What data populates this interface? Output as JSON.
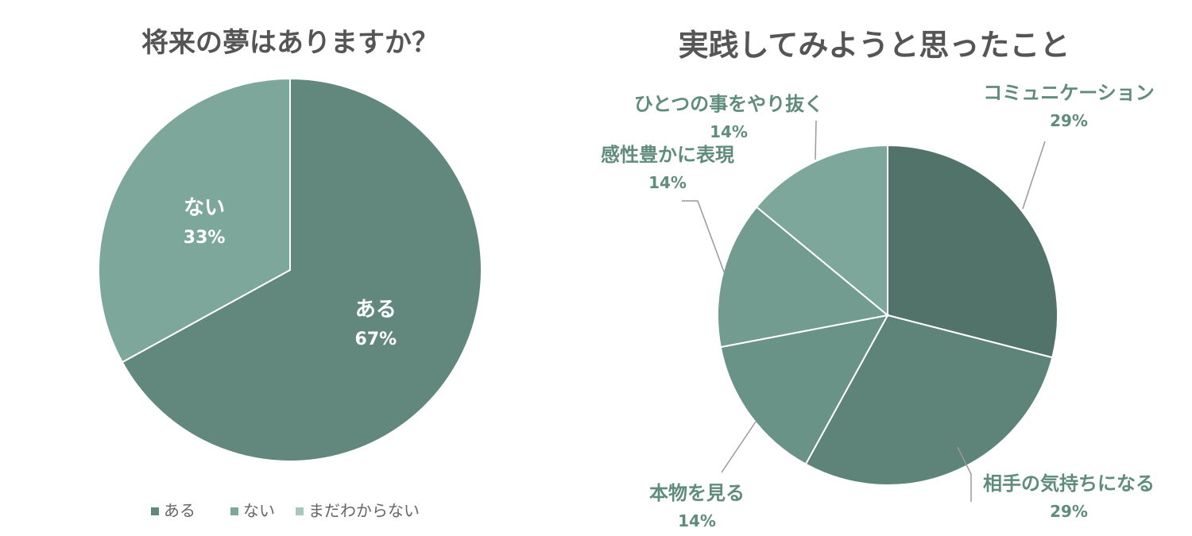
{
  "chart_data": [
    {
      "type": "pie",
      "title": "将来の夢はありますか？",
      "slices": [
        {
          "label": "ある",
          "value": 67,
          "display": "67%",
          "color": "#62877c"
        },
        {
          "label": "ない",
          "value": 33,
          "display": "33%",
          "color": "#7ca79a"
        },
        {
          "label": "まだわからない",
          "value": 0,
          "display": "0%",
          "color": "#a8c8bd"
        }
      ],
      "legend": {
        "position": "bottom",
        "entries": [
          {
            "label": "ある",
            "color": "#62877c"
          },
          {
            "label": "ない",
            "color": "#7ca79a"
          },
          {
            "label": "まだわからない",
            "color": "#a8c8bd"
          }
        ]
      }
    },
    {
      "type": "pie",
      "title": "実践してみようと思ったこと",
      "slices": [
        {
          "label": "コミュニケーション",
          "value": 29,
          "display": "29%",
          "color": "#52736a"
        },
        {
          "label": "相手の気持ちになる",
          "value": 29,
          "display": "29%",
          "color": "#5e8479"
        },
        {
          "label": "本物を見る",
          "value": 14,
          "display": "14%",
          "color": "#6a9387"
        },
        {
          "label": "感性豊かに表現",
          "value": 14,
          "display": "14%",
          "color": "#739c90"
        },
        {
          "label": "ひとつの事をやり抜く",
          "value": 14,
          "display": "14%",
          "color": "#7ca79a"
        }
      ],
      "label_color": "#5f8c7d"
    }
  ]
}
